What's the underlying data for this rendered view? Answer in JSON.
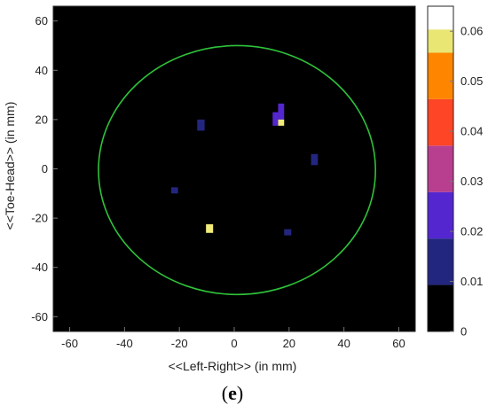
{
  "chart_data": {
    "type": "heatmap",
    "xlabel": "<<Left-Right>> (in mm)",
    "ylabel": "<<Toe-Head>> (in mm)",
    "xlim": [
      -66,
      66
    ],
    "ylim": [
      -66,
      66
    ],
    "xticks": [
      -60,
      -40,
      -20,
      0,
      20,
      40,
      60
    ],
    "yticks": [
      -60,
      -40,
      -20,
      0,
      20,
      40,
      60
    ],
    "background_color": "#000000",
    "circle": {
      "cx": 1,
      "cy": -0.5,
      "r": 50.5,
      "color": "#2fc23a"
    },
    "cells": [
      {
        "x": [
          -13.5,
          -10.8
        ],
        "y": [
          15.5,
          20.0
        ],
        "value": 0.015
      },
      {
        "x": [
          28.0,
          30.5
        ],
        "y": [
          1.5,
          6.0
        ],
        "value": 0.015
      },
      {
        "x": [
          -23.0,
          -20.5
        ],
        "y": [
          -10.0,
          -7.5
        ],
        "value": 0.015
      },
      {
        "x": [
          18.2,
          20.8
        ],
        "y": [
          -27.0,
          -24.5
        ],
        "value": 0.015
      },
      {
        "x": [
          -10.3,
          -7.7
        ],
        "y": [
          -26.0,
          -22.5
        ],
        "value": 0.055
      },
      {
        "x": [
          16.0,
          18.2
        ],
        "y": [
          20.0,
          26.5
        ],
        "value": 0.025
      },
      {
        "x": [
          14.0,
          16.0
        ],
        "y": [
          17.5,
          23.0
        ],
        "value": 0.025
      },
      {
        "x": [
          16.0,
          18.2
        ],
        "y": [
          17.5,
          20.0
        ],
        "value": 0.055
      }
    ],
    "colorbar": {
      "ticks": [
        "0",
        "0.01",
        "0.02",
        "0.03",
        "0.04",
        "0.05",
        "0.06"
      ],
      "tick_values": [
        0,
        0.01,
        0.02,
        0.03,
        0.04,
        0.05,
        0.06
      ],
      "bins": [
        {
          "from": 0.0,
          "to": 0.00929,
          "color": "#000000"
        },
        {
          "from": 0.00929,
          "to": 0.01857,
          "color": "#22267f"
        },
        {
          "from": 0.01857,
          "to": 0.02786,
          "color": "#5326d0"
        },
        {
          "from": 0.02786,
          "to": 0.03714,
          "color": "#b83e8f"
        },
        {
          "from": 0.03714,
          "to": 0.04643,
          "color": "#fe4525"
        },
        {
          "from": 0.04643,
          "to": 0.05571,
          "color": "#fe8500"
        },
        {
          "from": 0.05571,
          "to": 0.065,
          "color": "#f5c000"
        }
      ],
      "extra_bins": [
        {
          "from": 0.0557,
          "to": 0.0558,
          "color": "#e9e673"
        }
      ],
      "top_bin": {
        "from": 0.05571,
        "to": 0.065,
        "color": "#ffffff"
      }
    }
  },
  "caption": {
    "open": "(",
    "letter": "e",
    "close": ")"
  }
}
